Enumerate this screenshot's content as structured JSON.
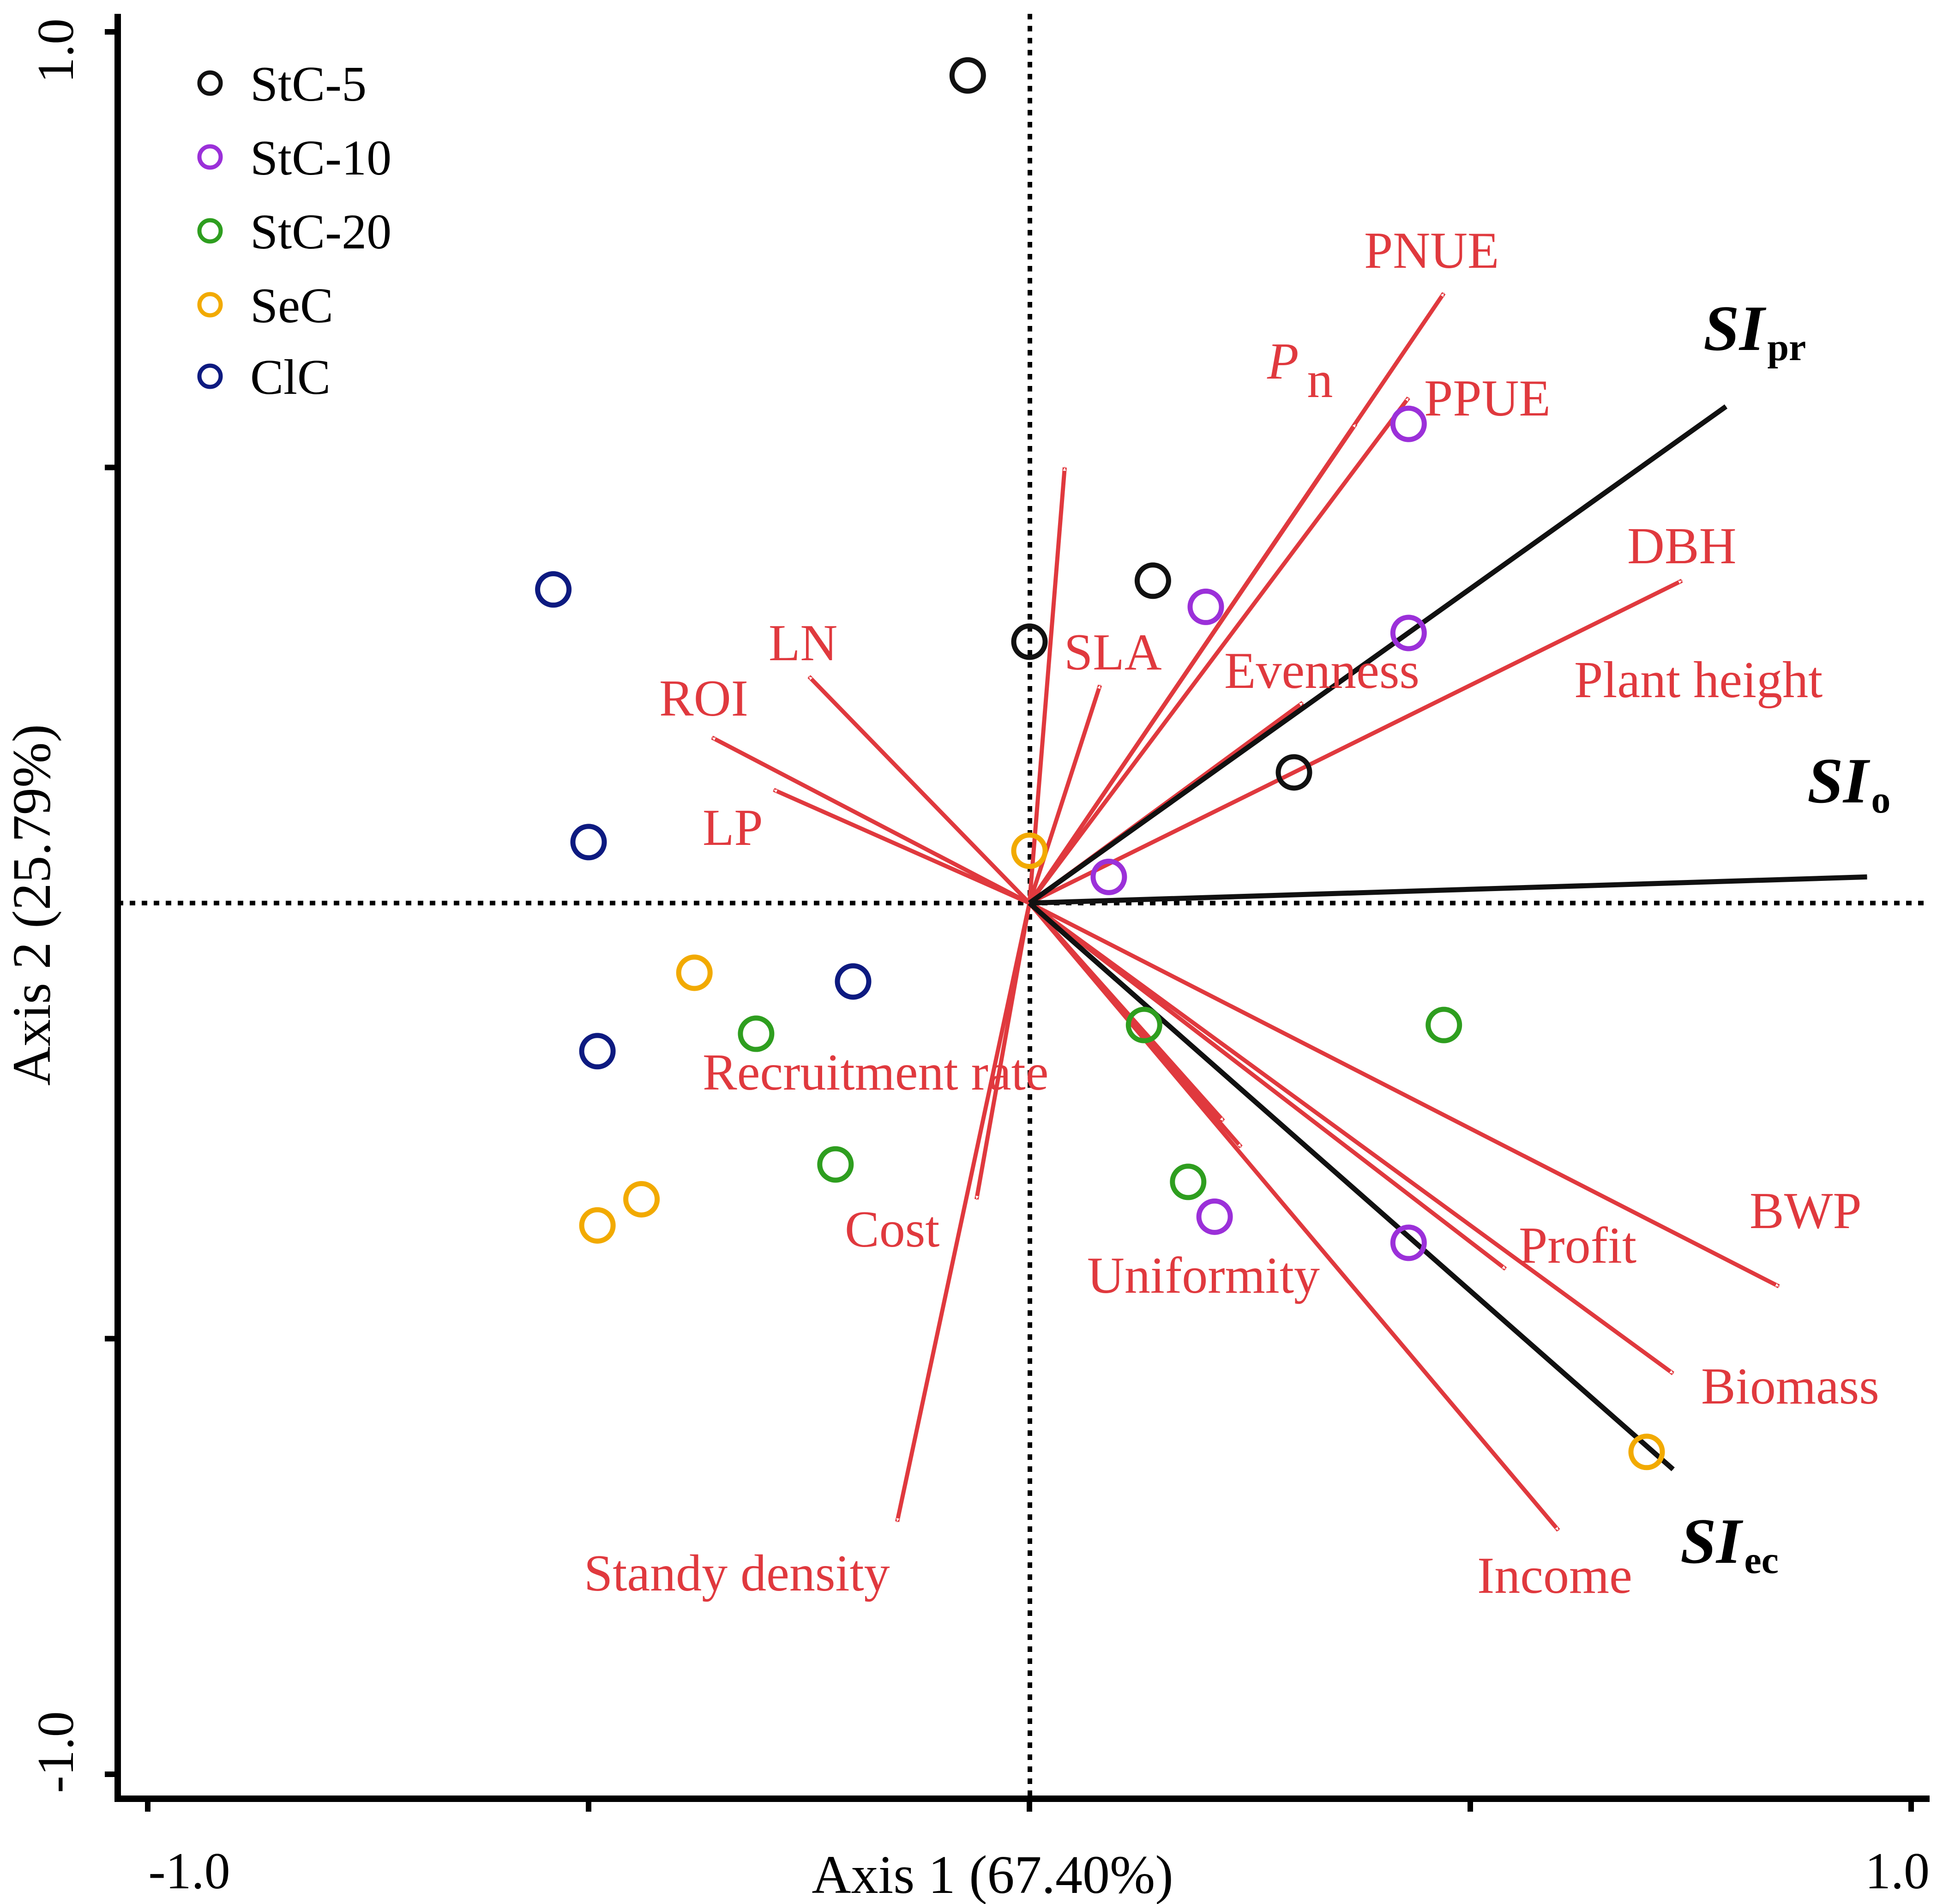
{
  "chart_data": {
    "type": "scatter",
    "subtype": "RDA biplot",
    "xlabel": "Axis 1 (67.40%)",
    "ylabel": "Axis 2 (25.79%)",
    "xlim": [
      -1.0,
      1.0
    ],
    "ylim": [
      -1.0,
      1.0
    ],
    "x_tick_labels": [
      "-1.0",
      "1.0"
    ],
    "y_tick_labels": [
      "1.0",
      "-1.0"
    ],
    "x_ticks": [
      -0.5,
      0,
      0.5
    ],
    "y_ticks": [
      0.5,
      -0.5
    ],
    "legend_position": "top-left",
    "legend": [
      {
        "label": "StC-5",
        "color": "#111111"
      },
      {
        "label": "StC-10",
        "color": "#9b30d9"
      },
      {
        "label": "StC-20",
        "color": "#2e9e1f"
      },
      {
        "label": "SeC",
        "color": "#f2aa00"
      },
      {
        "label": "ClC",
        "color": "#0d1a80"
      }
    ],
    "series": [
      {
        "name": "StC-5",
        "color": "#111111",
        "points": [
          [
            -0.07,
            0.95
          ],
          [
            0.14,
            0.37
          ],
          [
            0.0,
            0.3
          ],
          [
            0.3,
            0.15
          ]
        ]
      },
      {
        "name": "StC-10",
        "color": "#9b30d9",
        "points": [
          [
            0.43,
            0.55
          ],
          [
            0.2,
            0.34
          ],
          [
            0.43,
            0.31
          ],
          [
            0.09,
            0.03
          ],
          [
            0.21,
            -0.36
          ],
          [
            0.43,
            -0.39
          ]
        ]
      },
      {
        "name": "StC-20",
        "color": "#2e9e1f",
        "points": [
          [
            -0.31,
            -0.15
          ],
          [
            0.13,
            -0.14
          ],
          [
            0.47,
            -0.14
          ],
          [
            -0.22,
            -0.3
          ],
          [
            0.18,
            -0.32
          ]
        ]
      },
      {
        "name": "SeC",
        "color": "#f2aa00",
        "points": [
          [
            0.0,
            0.06
          ],
          [
            -0.38,
            -0.08
          ],
          [
            -0.44,
            -0.34
          ],
          [
            -0.49,
            -0.37
          ],
          [
            0.7,
            -0.63
          ]
        ]
      },
      {
        "name": "ClC",
        "color": "#0d1a80",
        "points": [
          [
            -0.54,
            0.36
          ],
          [
            -0.5,
            0.07
          ],
          [
            -0.2,
            -0.09
          ],
          [
            -0.49,
            -0.17
          ]
        ]
      }
    ],
    "response_vectors": [
      {
        "label": "PNUE",
        "x": 0.47,
        "y": 0.7
      },
      {
        "label_main": "P",
        "label_sub": "n",
        "x": 0.37,
        "y": 0.55
      },
      {
        "label": "PPUE",
        "x": 0.43,
        "y": 0.58
      },
      {
        "label": "DBH",
        "x": 0.74,
        "y": 0.37
      },
      {
        "label": "Plant height",
        "x": 0.04,
        "y": 0.5
      },
      {
        "label": "Evenness",
        "x": 0.31,
        "y": 0.23
      },
      {
        "label": "SLA",
        "x": 0.08,
        "y": 0.25
      },
      {
        "label": "LN",
        "x": -0.25,
        "y": 0.26
      },
      {
        "label": "ROI",
        "x": -0.36,
        "y": 0.19
      },
      {
        "label": "LP",
        "x": -0.29,
        "y": 0.13
      },
      {
        "label": "Recruitment rate",
        "x": 0.22,
        "y": -0.25
      },
      {
        "label": "Cost",
        "x": -0.06,
        "y": -0.34
      },
      {
        "label": "Standy density",
        "x": -0.15,
        "y": -0.71
      },
      {
        "label": "Uniformity",
        "x": 0.24,
        "y": -0.28
      },
      {
        "label": "Profit",
        "x": 0.54,
        "y": -0.42
      },
      {
        "label": "BWP",
        "x": 0.85,
        "y": -0.44
      },
      {
        "label": "Biomass",
        "x": 0.73,
        "y": -0.54
      },
      {
        "label": "Income",
        "x": 0.6,
        "y": -0.72
      }
    ],
    "index_vectors": [
      {
        "label_main": "SI",
        "label_sub": "pr",
        "x": 0.79,
        "y": 0.57
      },
      {
        "label_main": "SI",
        "label_sub": "o",
        "x": 0.95,
        "y": 0.03
      },
      {
        "label_main": "SI",
        "label_sub": "ec",
        "x": 0.73,
        "y": -0.65
      }
    ]
  }
}
